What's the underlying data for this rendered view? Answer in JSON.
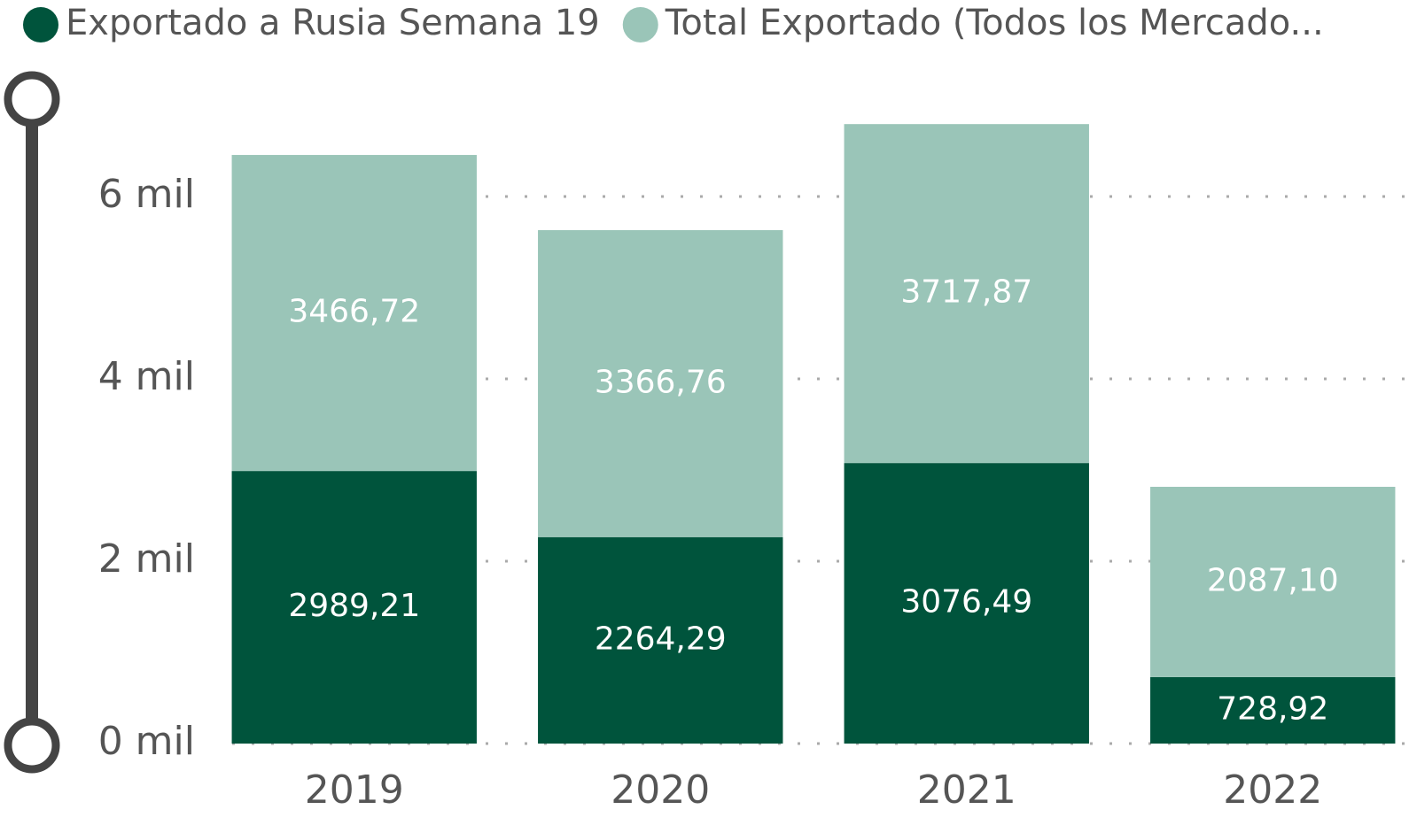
{
  "chart_data": {
    "type": "stacked_bar",
    "categories": [
      "2019",
      "2020",
      "2021",
      "2022"
    ],
    "series": [
      {
        "name": "Exportado a Rusia Semana 19",
        "color": "#00543c",
        "values": [
          2989.21,
          2264.29,
          3076.49,
          728.92
        ],
        "value_labels": [
          "2989,21",
          "2264,29",
          "3076,49",
          "728,92"
        ]
      },
      {
        "name": "Total Exportado (Todos los Mercado...",
        "color": "#9ac5b8",
        "values": [
          3466.72,
          3366.76,
          3717.87,
          2087.1
        ],
        "value_labels": [
          "3466,72",
          "3366,76",
          "3717,87",
          "2087,10"
        ]
      }
    ],
    "ylim": [
      0,
      7000
    ],
    "yticks": [
      {
        "value": 0,
        "label": "0 mil"
      },
      {
        "value": 2000,
        "label": "2 mil"
      },
      {
        "value": 4000,
        "label": "4 mil"
      },
      {
        "value": 6000,
        "label": "6 mil"
      }
    ],
    "grid": true
  }
}
